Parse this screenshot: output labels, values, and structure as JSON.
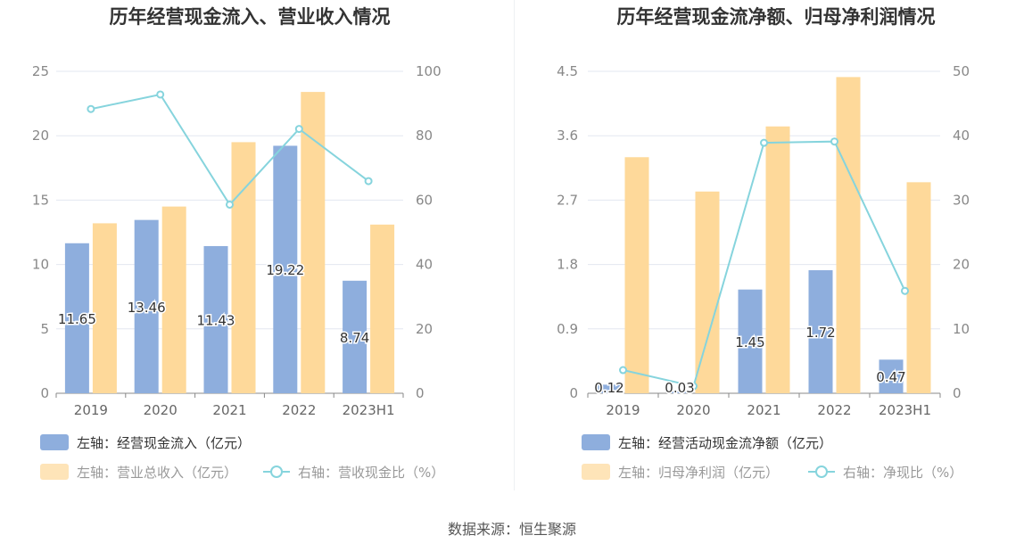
{
  "source_label": "数据来源：恒生聚源",
  "colors": {
    "blue": "#8eaedd",
    "orange": "#fed99a",
    "line": "#86d4dd",
    "grid": "#e3e7f0",
    "axis": "#888888"
  },
  "chart_data": [
    {
      "type": "bar",
      "title": "历年经营现金流入、营业收入情况",
      "categories": [
        "2019",
        "2020",
        "2021",
        "2022",
        "2023H1"
      ],
      "left_axis": {
        "min": 0,
        "max": 25,
        "ticks": [
          "0",
          "5",
          "10",
          "15",
          "20",
          "25"
        ]
      },
      "right_axis": {
        "min": 0,
        "max": 100,
        "ticks": [
          "0",
          "20",
          "40",
          "60",
          "80",
          "100"
        ]
      },
      "series": [
        {
          "name": "左轴：经营现金流入（亿元）",
          "kind": "bar",
          "axis": "left",
          "color": "#8eaedd",
          "values": [
            11.65,
            13.46,
            11.43,
            19.22,
            8.74
          ],
          "labels": [
            "11.65",
            "13.46",
            "11.43",
            "19.22",
            "8.74"
          ]
        },
        {
          "name": "左轴：营业总收入（亿元）",
          "kind": "bar",
          "axis": "left",
          "color": "#fed99a",
          "values": [
            13.2,
            14.5,
            19.5,
            23.4,
            13.1
          ]
        },
        {
          "name": "右轴：营收现金比（%）",
          "kind": "line",
          "axis": "right",
          "color": "#86d4dd",
          "values": [
            88.3,
            92.8,
            58.6,
            82.1,
            65.9
          ]
        }
      ]
    },
    {
      "type": "bar",
      "title": "历年经营现金流净额、归母净利润情况",
      "categories": [
        "2019",
        "2020",
        "2021",
        "2022",
        "2023H1"
      ],
      "left_axis": {
        "min": 0,
        "max": 4.5,
        "ticks": [
          "0",
          "0.9",
          "1.8",
          "2.7",
          "3.6",
          "4.5"
        ]
      },
      "right_axis": {
        "min": 0,
        "max": 50,
        "ticks": [
          "0",
          "10",
          "20",
          "30",
          "40",
          "50"
        ]
      },
      "series": [
        {
          "name": "左轴：经营活动现金流净额（亿元）",
          "kind": "bar",
          "axis": "left",
          "color": "#8eaedd",
          "values": [
            0.12,
            0.03,
            1.45,
            1.72,
            0.47
          ],
          "labels": [
            "0.12",
            "0.03",
            "1.45",
            "1.72",
            "0.47"
          ]
        },
        {
          "name": "左轴：归母净利润（亿元）",
          "kind": "bar",
          "axis": "left",
          "color": "#fed99a",
          "values": [
            3.3,
            2.82,
            3.73,
            4.42,
            2.95
          ]
        },
        {
          "name": "右轴：净现比（%）",
          "kind": "line",
          "axis": "right",
          "color": "#86d4dd",
          "values": [
            3.6,
            1.1,
            38.9,
            39.1,
            15.9
          ]
        }
      ]
    }
  ]
}
